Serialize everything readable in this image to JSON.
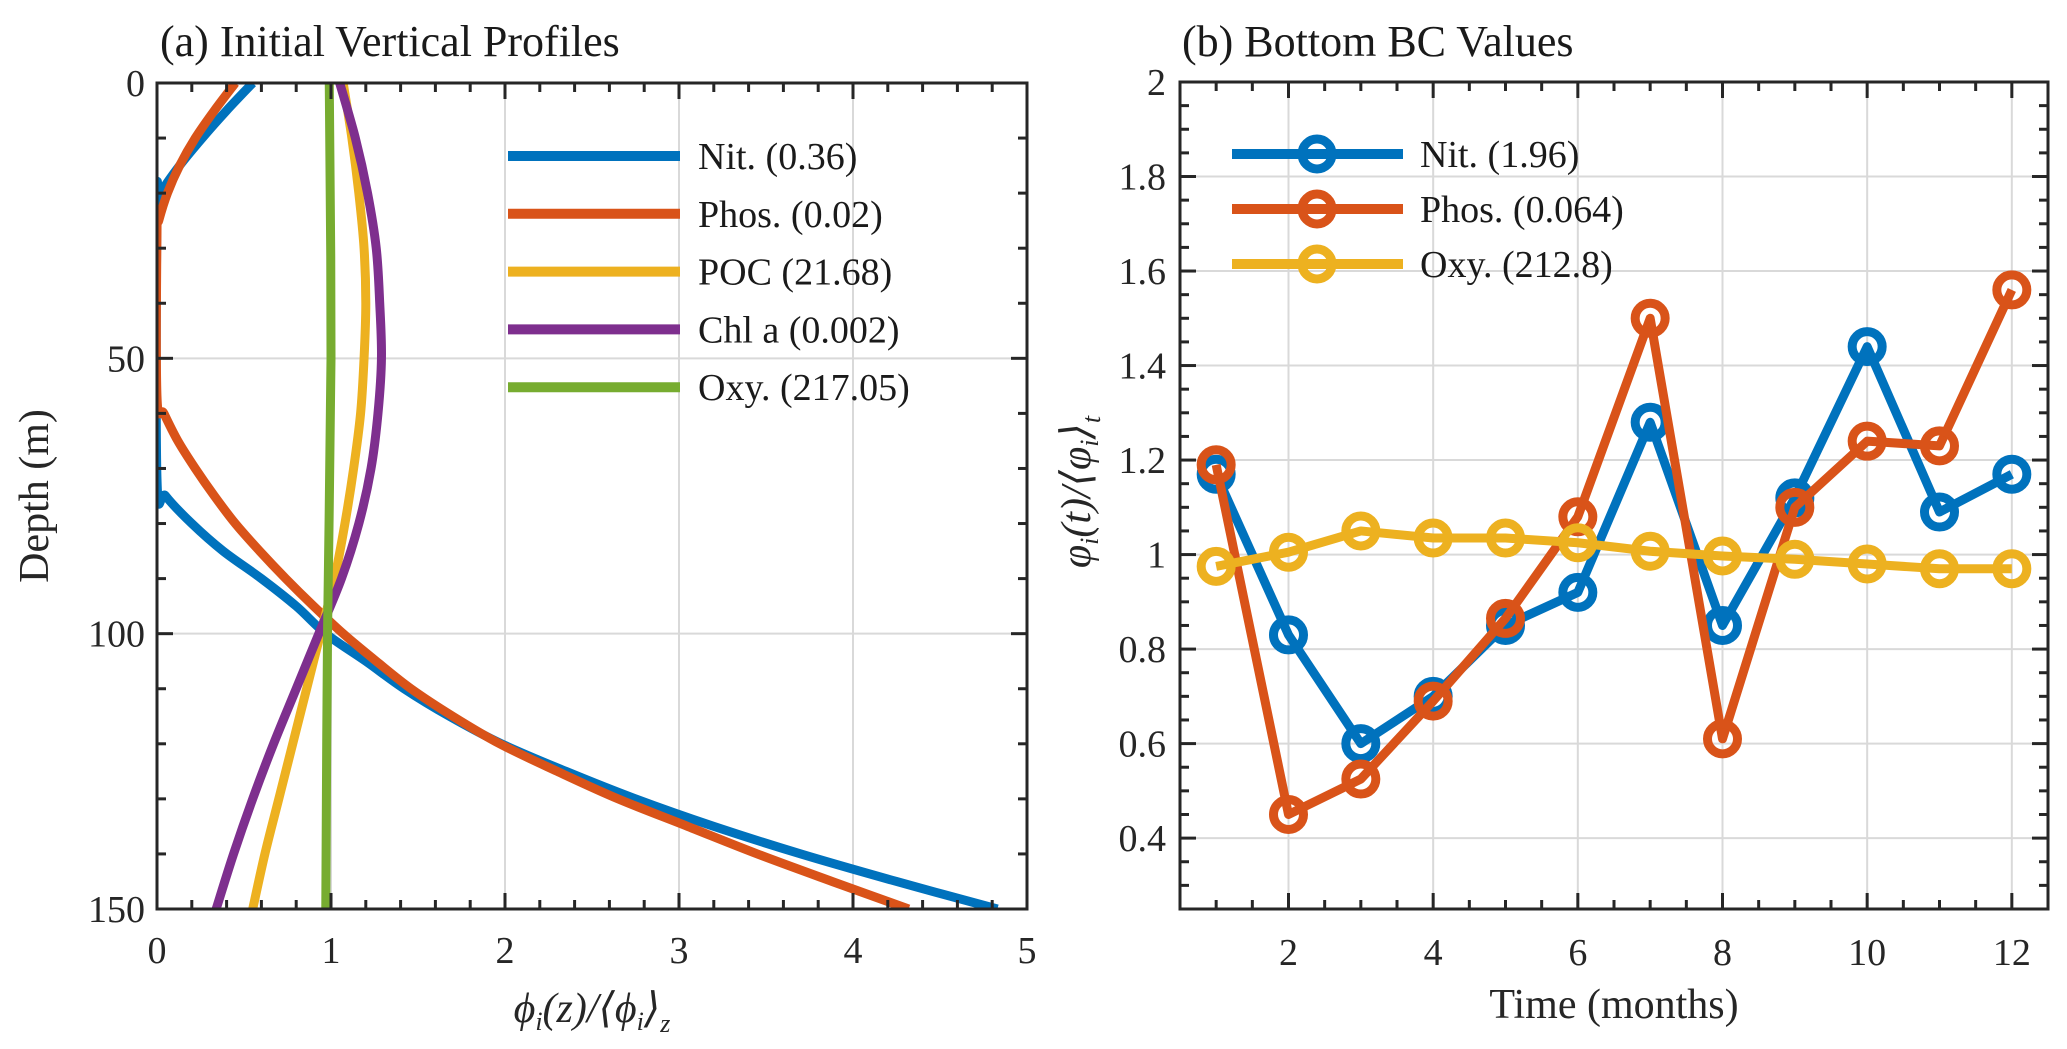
{
  "chart_data": [
    {
      "id": "a",
      "type": "line",
      "title": "(a) Initial Vertical Profiles",
      "xlabel": "φ_i(z)/⟨φ_i⟩_z",
      "ylabel": "Depth (m)",
      "xlim": [
        0,
        5
      ],
      "ylim": [
        0,
        150
      ],
      "y_reversed": true,
      "xticks": [
        0,
        1,
        2,
        3,
        4,
        5
      ],
      "yticks": [
        0,
        50,
        100,
        150
      ],
      "grid": true,
      "legend_position": "top-right",
      "series": [
        {
          "name": "Nit. (0.36)",
          "color": "#0072BD",
          "depth": [
            0,
            5,
            10,
            15,
            20,
            22,
            72,
            75,
            80,
            85,
            90,
            95,
            100,
            105,
            110,
            115,
            120,
            125,
            130,
            135,
            140,
            145,
            150
          ],
          "values": [
            0.55,
            0.4,
            0.26,
            0.13,
            0.02,
            0,
            0,
            0.05,
            0.2,
            0.38,
            0.6,
            0.8,
            0.97,
            1.2,
            1.42,
            1.68,
            1.98,
            2.35,
            2.75,
            3.2,
            3.7,
            4.25,
            4.83
          ]
        },
        {
          "name": "Phos. (0.02)",
          "color": "#D95319",
          "depth": [
            0,
            5,
            10,
            15,
            20,
            25,
            27,
            57,
            60,
            65,
            70,
            75,
            80,
            85,
            90,
            95,
            100,
            105,
            110,
            115,
            120,
            125,
            130,
            135,
            140,
            145,
            150
          ],
          "values": [
            0.45,
            0.33,
            0.22,
            0.13,
            0.06,
            0.01,
            0,
            0,
            0.04,
            0.12,
            0.22,
            0.33,
            0.45,
            0.59,
            0.74,
            0.9,
            1.07,
            1.26,
            1.46,
            1.7,
            1.97,
            2.3,
            2.65,
            3.05,
            3.45,
            3.88,
            4.32
          ]
        },
        {
          "name": "POC (21.68)",
          "color": "#EDB120",
          "depth": [
            0,
            10,
            20,
            30,
            40,
            50,
            60,
            70,
            80,
            90,
            100,
            110,
            120,
            130,
            140,
            150
          ],
          "values": [
            1.07,
            1.12,
            1.16,
            1.19,
            1.2,
            1.19,
            1.17,
            1.13,
            1.08,
            1.02,
            0.94,
            0.86,
            0.78,
            0.7,
            0.62,
            0.55
          ]
        },
        {
          "name": "Chl a (0.002)",
          "color": "#7E2F8E",
          "depth": [
            0,
            10,
            20,
            30,
            40,
            50,
            60,
            70,
            80,
            90,
            100,
            110,
            120,
            130,
            140,
            150
          ],
          "values": [
            1.05,
            1.14,
            1.21,
            1.26,
            1.28,
            1.29,
            1.27,
            1.23,
            1.16,
            1.06,
            0.93,
            0.8,
            0.67,
            0.55,
            0.44,
            0.34
          ]
        },
        {
          "name": "Oxy. (217.05)",
          "color": "#77AC30",
          "depth": [
            0,
            50,
            100,
            150
          ],
          "values": [
            0.99,
            1.0,
            0.98,
            0.97
          ]
        }
      ]
    },
    {
      "id": "b",
      "type": "line",
      "title": "(b) Bottom BC Values",
      "xlabel": "Time (months)",
      "ylabel": "φ_i(t)/⟨φ_i⟩_t",
      "xlim": [
        0.5,
        12.5
      ],
      "ylim": [
        0.25,
        2
      ],
      "xticks": [
        2,
        4,
        6,
        8,
        10,
        12
      ],
      "yticks": [
        0.4,
        0.6,
        0.8,
        1,
        1.2,
        1.4,
        1.6,
        1.8,
        2
      ],
      "ytick_labels": [
        "0.4",
        "0.6",
        "0.8",
        "1",
        "1.2",
        "1.4",
        "1.6",
        "1.8",
        "2"
      ],
      "grid": true,
      "marker": "circle",
      "legend_position": "top-left",
      "x": [
        1,
        2,
        3,
        4,
        5,
        6,
        7,
        8,
        9,
        10,
        11,
        12
      ],
      "series": [
        {
          "name": "Nit. (1.96)",
          "color": "#0072BD",
          "values": [
            1.17,
            0.83,
            0.6,
            0.7,
            0.85,
            0.92,
            1.28,
            0.85,
            1.12,
            1.44,
            1.09,
            1.17
          ]
        },
        {
          "name": "Phos. (0.064)",
          "color": "#D95319",
          "values": [
            1.19,
            0.45,
            0.525,
            0.69,
            0.865,
            1.08,
            1.5,
            0.61,
            1.1,
            1.24,
            1.23,
            1.56
          ]
        },
        {
          "name": "Oxy. (212.8)",
          "color": "#EDB120",
          "values": [
            0.975,
            1.005,
            1.05,
            1.035,
            1.035,
            1.025,
            1.007,
            0.997,
            0.99,
            0.98,
            0.97,
            0.97
          ]
        }
      ]
    }
  ]
}
